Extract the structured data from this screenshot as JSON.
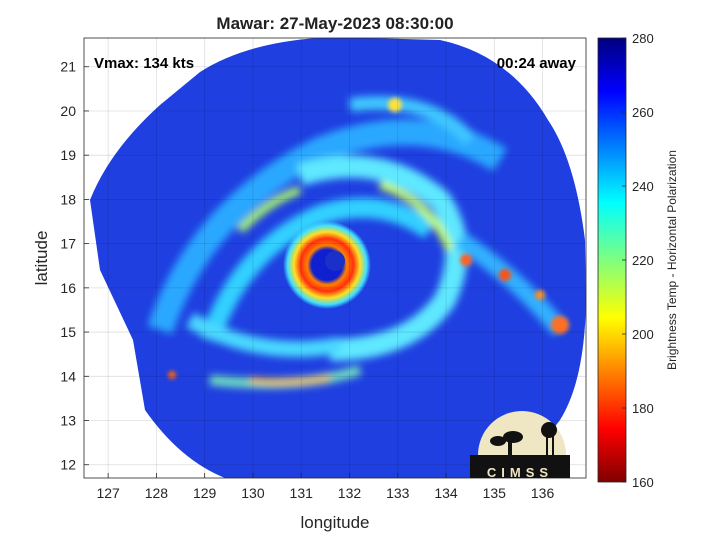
{
  "title": "Mawar: 27-May-2023 08:30:00",
  "annotations": {
    "vmax": "Vmax: 134 kts",
    "time_away": "00:24 away"
  },
  "logo_text": "CIMSS",
  "chart_data": {
    "type": "heatmap",
    "title": "Mawar: 27-May-2023 08:30:00",
    "xlabel": "longitude",
    "ylabel": "latitude",
    "xlim": [
      126.5,
      136.9
    ],
    "ylim": [
      11.7,
      21.65
    ],
    "x_ticks": [
      127,
      128,
      129,
      130,
      131,
      132,
      133,
      134,
      135,
      136
    ],
    "y_ticks": [
      12,
      13,
      14,
      15,
      16,
      17,
      18,
      19,
      20,
      21
    ],
    "grid": true,
    "storm_center": {
      "lon": 131.7,
      "lat": 16.7
    },
    "colorbar": {
      "label": "Brightness Temp - Horizontal Polarization",
      "range": [
        160,
        280
      ],
      "ticks": [
        160,
        180,
        200,
        220,
        240,
        260,
        280
      ],
      "colormap": "jet"
    }
  }
}
